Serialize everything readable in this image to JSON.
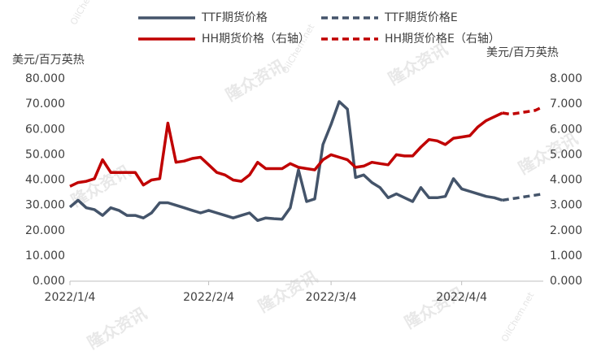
{
  "chart_data": {
    "type": "line",
    "y_label": "美元/百万英热",
    "y2_label": "美元/百万英热",
    "watermarks": [
      "隆众资讯",
      "OilChem.net"
    ],
    "categories": [
      "2022/1/4",
      null,
      null,
      null,
      null,
      null,
      null,
      null,
      null,
      null,
      null,
      null,
      null,
      null,
      null,
      null,
      null,
      "2022/2/4",
      null,
      null,
      null,
      null,
      null,
      null,
      null,
      null,
      null,
      null,
      null,
      null,
      null,
      null,
      "2022/3/4",
      null,
      null,
      null,
      null,
      null,
      null,
      null,
      null,
      null,
      null,
      null,
      null,
      null,
      null,
      null,
      "2022/4/4",
      null,
      null,
      null,
      null,
      null,
      null,
      null,
      null,
      null,
      null
    ],
    "ylim": [
      0,
      80
    ],
    "yticks": [
      {
        "value": 0,
        "label": "0.000"
      },
      {
        "value": 10,
        "label": "10.000"
      },
      {
        "value": 20,
        "label": "20.000"
      },
      {
        "value": 30,
        "label": "30.000"
      },
      {
        "value": 40,
        "label": "40.000"
      },
      {
        "value": 50,
        "label": "50.000"
      },
      {
        "value": 60,
        "label": "60.000"
      },
      {
        "value": 70,
        "label": "70.000"
      },
      {
        "value": 80,
        "label": "80.000"
      }
    ],
    "y2lim": [
      0,
      8
    ],
    "y2ticks": [
      {
        "value": 0,
        "label": "0.000"
      },
      {
        "value": 1,
        "label": "1.000"
      },
      {
        "value": 2,
        "label": "2.000"
      },
      {
        "value": 3,
        "label": "3.000"
      },
      {
        "value": 4,
        "label": "4.000"
      },
      {
        "value": 5,
        "label": "5.000"
      },
      {
        "value": 6,
        "label": "6.000"
      },
      {
        "value": 7,
        "label": "7.000"
      },
      {
        "value": 8,
        "label": "8.000"
      }
    ],
    "grid": false,
    "legend": "top",
    "series": [
      {
        "name": "TTF期货价格",
        "color": "#44546a",
        "dashed": false,
        "axis": "y",
        "values": [
          29.3,
          32,
          29,
          28.3,
          26,
          29,
          28,
          26,
          26,
          25,
          27,
          31,
          31,
          30,
          29,
          28,
          27,
          28,
          27,
          26,
          25,
          26,
          27,
          24,
          25,
          24.7,
          24.5,
          29,
          44,
          31.5,
          32.5,
          54,
          62,
          71,
          68,
          41,
          42,
          39,
          37,
          33,
          34.5,
          33,
          31.5,
          37,
          33,
          33,
          33.5,
          40.5,
          36.5,
          35.5,
          34.5,
          33.5,
          33,
          32,
          null,
          null,
          null,
          null,
          null
        ]
      },
      {
        "name": "TTF期货价格E",
        "color": "#44546a",
        "dashed": true,
        "axis": "y",
        "values": [
          null,
          null,
          null,
          null,
          null,
          null,
          null,
          null,
          null,
          null,
          null,
          null,
          null,
          null,
          null,
          null,
          null,
          null,
          null,
          null,
          null,
          null,
          null,
          null,
          null,
          null,
          null,
          null,
          null,
          null,
          null,
          null,
          null,
          null,
          null,
          null,
          null,
          null,
          null,
          null,
          null,
          null,
          null,
          null,
          null,
          null,
          null,
          null,
          null,
          null,
          null,
          null,
          null,
          32,
          32.5,
          33,
          33.5,
          34,
          34.5
        ]
      },
      {
        "name": "HH期货价格（右轴）",
        "color": "#c00000",
        "dashed": false,
        "axis": "y2",
        "values": [
          3.75,
          3.9,
          3.95,
          4.05,
          4.8,
          4.3,
          4.3,
          4.3,
          4.3,
          3.8,
          4.0,
          4.05,
          6.25,
          4.7,
          4.75,
          4.85,
          4.9,
          4.6,
          4.3,
          4.2,
          4.0,
          3.95,
          4.2,
          4.7,
          4.45,
          4.45,
          4.45,
          4.65,
          4.5,
          4.45,
          4.4,
          4.8,
          5.0,
          4.9,
          4.8,
          4.5,
          4.55,
          4.7,
          4.65,
          4.6,
          5.0,
          4.95,
          4.95,
          5.3,
          5.6,
          5.55,
          5.4,
          5.65,
          5.7,
          5.75,
          6.1,
          6.35,
          6.5,
          6.65,
          null,
          null,
          null,
          null,
          null
        ]
      },
      {
        "name": "HH期货价格E（右轴）",
        "color": "#c00000",
        "dashed": true,
        "axis": "y2",
        "values": [
          null,
          null,
          null,
          null,
          null,
          null,
          null,
          null,
          null,
          null,
          null,
          null,
          null,
          null,
          null,
          null,
          null,
          null,
          null,
          null,
          null,
          null,
          null,
          null,
          null,
          null,
          null,
          null,
          null,
          null,
          null,
          null,
          null,
          null,
          null,
          null,
          null,
          null,
          null,
          null,
          null,
          null,
          null,
          null,
          null,
          null,
          null,
          null,
          null,
          null,
          null,
          null,
          null,
          6.65,
          6.6,
          6.65,
          6.7,
          6.75,
          6.9
        ]
      }
    ]
  }
}
